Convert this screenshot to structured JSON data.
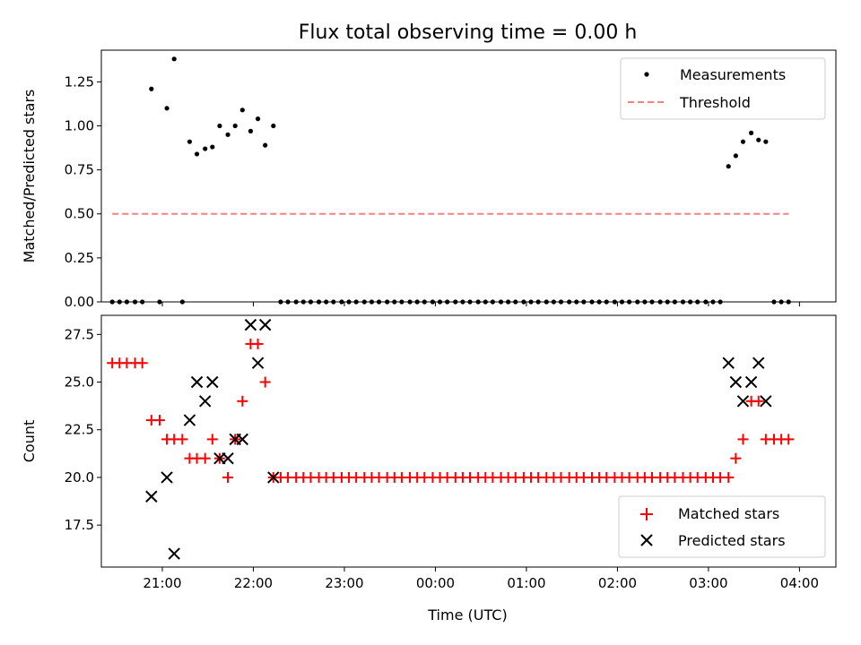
{
  "chart_data": [
    {
      "type": "scatter",
      "title": "Flux total observing time = 0.00 h",
      "xlabel": "",
      "ylabel": "Matched/Predicted stars",
      "ylim": [
        0,
        1.43
      ],
      "yticks": [
        "0.00",
        "0.25",
        "0.50",
        "0.75",
        "1.00",
        "1.25"
      ],
      "ytick_values": [
        0,
        0.25,
        0.5,
        0.75,
        1.0,
        1.25
      ],
      "xlim": [
        20.33,
        28.4
      ],
      "grid": false,
      "legend_position": "top-right",
      "legend": [
        "Measurements",
        "Threshold"
      ],
      "series": [
        {
          "name": "Measurements",
          "color": "#000000",
          "marker": "dot",
          "x": [
            20.45,
            20.53,
            20.61,
            20.7,
            20.78,
            20.88,
            20.97,
            21.05,
            21.13,
            21.22,
            21.3,
            21.38,
            21.47,
            21.55,
            21.63,
            21.72,
            21.8,
            21.88,
            21.97,
            22.05,
            22.13,
            22.22,
            22.3,
            22.38,
            22.47,
            22.55,
            22.63,
            22.72,
            22.8,
            22.88,
            22.97,
            23.05,
            23.13,
            23.22,
            23.3,
            23.38,
            23.47,
            23.55,
            23.63,
            23.72,
            23.8,
            23.88,
            23.97,
            24.05,
            24.13,
            24.22,
            24.3,
            24.38,
            24.47,
            24.55,
            24.63,
            24.72,
            24.8,
            24.88,
            24.97,
            25.05,
            25.13,
            25.22,
            25.3,
            25.38,
            25.47,
            25.55,
            25.63,
            25.72,
            25.8,
            25.88,
            25.97,
            26.05,
            26.13,
            26.22,
            26.3,
            26.38,
            26.47,
            26.55,
            26.63,
            26.72,
            26.8,
            26.88,
            26.97,
            27.05,
            27.13,
            27.22,
            27.3,
            27.38,
            27.47,
            27.55,
            27.63,
            27.72,
            27.8,
            27.88
          ],
          "y": [
            0,
            0,
            0,
            0,
            0,
            1.21,
            0,
            1.1,
            1.38,
            0,
            0.91,
            0.84,
            0.87,
            0.88,
            1.0,
            0.95,
            1.0,
            1.09,
            0.97,
            1.04,
            0.89,
            1.0,
            0,
            0,
            0,
            0,
            0,
            0,
            0,
            0,
            0,
            0,
            0,
            0,
            0,
            0,
            0,
            0,
            0,
            0,
            0,
            0,
            0,
            0,
            0,
            0,
            0,
            0,
            0,
            0,
            0,
            0,
            0,
            0,
            0,
            0,
            0,
            0,
            0,
            0,
            0,
            0,
            0,
            0,
            0,
            0,
            0,
            0,
            0,
            0,
            0,
            0,
            0,
            0,
            0,
            0,
            0,
            0,
            0,
            0,
            0,
            0.77,
            0.83,
            0.91,
            0.96,
            0.92,
            0.91,
            0,
            0,
            0
          ]
        },
        {
          "name": "Threshold",
          "color": "#ff7f7f",
          "style": "dashed",
          "x": [
            20.45,
            27.88
          ],
          "y": [
            0.5,
            0.5
          ]
        }
      ]
    },
    {
      "type": "scatter",
      "title": "",
      "xlabel": "Time (UTC)",
      "ylabel": "Count",
      "ylim": [
        15.3,
        28.5
      ],
      "yticks": [
        "17.5",
        "20.0",
        "22.5",
        "25.0",
        "27.5"
      ],
      "ytick_values": [
        17.5,
        20.0,
        22.5,
        25.0,
        27.5
      ],
      "xlim": [
        20.33,
        28.4
      ],
      "xticks": [
        "21:00",
        "22:00",
        "23:00",
        "00:00",
        "01:00",
        "02:00",
        "03:00",
        "04:00"
      ],
      "xtick_values": [
        21,
        22,
        23,
        24,
        25,
        26,
        27,
        28
      ],
      "grid": false,
      "legend_position": "bottom-right",
      "legend": [
        "Matched stars",
        "Predicted stars"
      ],
      "series": [
        {
          "name": "Matched stars",
          "color": "#ff0000",
          "marker": "plus",
          "x": [
            20.45,
            20.53,
            20.61,
            20.7,
            20.78,
            20.88,
            20.97,
            21.05,
            21.13,
            21.22,
            21.3,
            21.38,
            21.47,
            21.55,
            21.63,
            21.72,
            21.8,
            21.88,
            21.97,
            22.05,
            22.13,
            22.22,
            22.3,
            22.38,
            22.47,
            22.55,
            22.63,
            22.72,
            22.8,
            22.88,
            22.97,
            23.05,
            23.13,
            23.22,
            23.3,
            23.38,
            23.47,
            23.55,
            23.63,
            23.72,
            23.8,
            23.88,
            23.97,
            24.05,
            24.13,
            24.22,
            24.3,
            24.38,
            24.47,
            24.55,
            24.63,
            24.72,
            24.8,
            24.88,
            24.97,
            25.05,
            25.13,
            25.22,
            25.3,
            25.38,
            25.47,
            25.55,
            25.63,
            25.72,
            25.8,
            25.88,
            25.97,
            26.05,
            26.13,
            26.22,
            26.3,
            26.38,
            26.47,
            26.55,
            26.63,
            26.72,
            26.8,
            26.88,
            26.97,
            27.05,
            27.13,
            27.22,
            27.3,
            27.38,
            27.47,
            27.55,
            27.63,
            27.72,
            27.8,
            27.88
          ],
          "y": [
            26,
            26,
            26,
            26,
            26,
            23,
            23,
            22,
            22,
            22,
            21,
            21,
            21,
            22,
            21,
            20,
            22,
            24,
            27,
            27,
            25,
            20,
            20,
            20,
            20,
            20,
            20,
            20,
            20,
            20,
            20,
            20,
            20,
            20,
            20,
            20,
            20,
            20,
            20,
            20,
            20,
            20,
            20,
            20,
            20,
            20,
            20,
            20,
            20,
            20,
            20,
            20,
            20,
            20,
            20,
            20,
            20,
            20,
            20,
            20,
            20,
            20,
            20,
            20,
            20,
            20,
            20,
            20,
            20,
            20,
            20,
            20,
            20,
            20,
            20,
            20,
            20,
            20,
            20,
            20,
            20,
            20,
            21,
            22,
            24,
            24,
            22,
            22,
            22,
            22
          ]
        },
        {
          "name": "Predicted stars",
          "color": "#000000",
          "marker": "x",
          "x": [
            20.88,
            21.05,
            21.13,
            21.3,
            21.38,
            21.47,
            21.55,
            21.63,
            21.72,
            21.8,
            21.88,
            21.97,
            22.05,
            22.13,
            22.22,
            27.22,
            27.3,
            27.38,
            27.47,
            27.55,
            27.63
          ],
          "y": [
            19,
            20,
            16,
            23,
            25,
            24,
            25,
            21,
            21,
            22,
            22,
            28,
            26,
            28,
            20,
            26,
            25,
            24,
            25,
            26,
            24
          ]
        }
      ]
    }
  ]
}
